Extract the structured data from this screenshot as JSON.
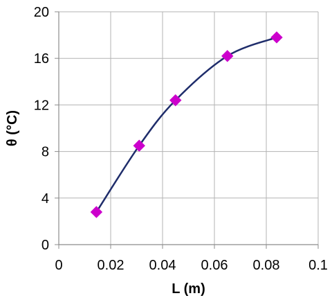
{
  "chart_data": {
    "type": "scatter",
    "title": "",
    "xlabel": "L (m)",
    "ylabel": "θ (°C)",
    "xlim": [
      0,
      0.1
    ],
    "ylim": [
      0,
      20
    ],
    "x_ticks": [
      "0",
      "0.02",
      "0.04",
      "0.06",
      "0.08",
      "0.1"
    ],
    "y_ticks": [
      "0",
      "4",
      "8",
      "12",
      "16",
      "20"
    ],
    "grid": true,
    "legend": "none",
    "series": [
      {
        "marker": "diamond",
        "marker_color": "#cc00cc",
        "line": "smooth",
        "line_color": "#1f2d6b",
        "x": [
          0.0145,
          0.031,
          0.045,
          0.065,
          0.084
        ],
        "y": [
          2.8,
          8.5,
          12.4,
          16.2,
          17.8
        ]
      }
    ]
  }
}
